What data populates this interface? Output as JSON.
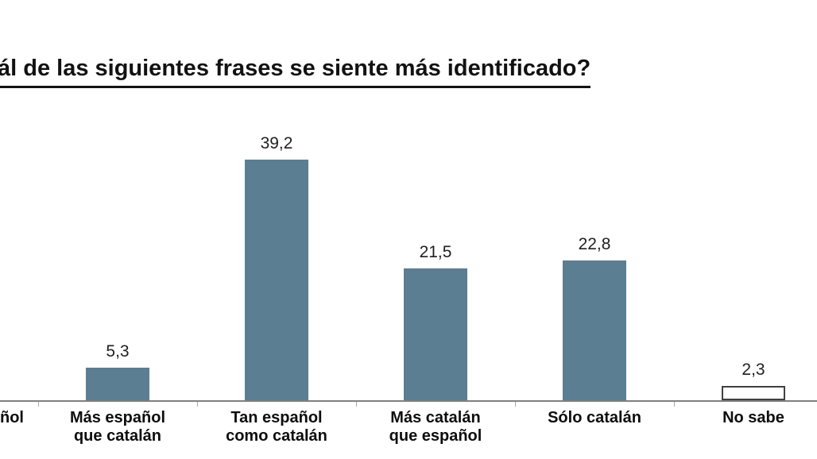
{
  "title": {
    "visible_text": "ál de las siguientes frases se siente más identificado?",
    "underlined": true
  },
  "chart_data": {
    "type": "bar",
    "title": "ál de las siguientes frases se siente más identificado?",
    "categories": [
      "ñol",
      "Más español que catalán",
      "Tan español como catalán",
      "Más catalán que español",
      "Sólo catalán",
      "No sabe"
    ],
    "category_label_lines": [
      [
        "ñol"
      ],
      [
        "Más español",
        "que catalán"
      ],
      [
        "Tan español",
        "como catalán"
      ],
      [
        "Más catalán",
        "que español"
      ],
      [
        "Sólo catalán"
      ],
      [
        "No sabe"
      ]
    ],
    "first_category_cutoff": true,
    "values": [
      null,
      5.3,
      39.2,
      21.5,
      22.8,
      2.3
    ],
    "value_labels": [
      null,
      "5,3",
      "39,2",
      "21,5",
      "22,8",
      "2,3"
    ],
    "bar_styles": [
      "solid",
      "solid",
      "solid",
      "solid",
      "solid",
      "outline"
    ],
    "xlabel": "",
    "ylabel": "",
    "ylim": [
      0,
      42
    ],
    "grid": false,
    "legend": false,
    "colors": {
      "bar_fill": "#5b7e93",
      "outline_bar_fill": "#ffffff",
      "outline_bar_border": "#404040",
      "axis_line": "#7f7f7f",
      "tick": "#a6a6a6",
      "title_text": "#121212",
      "value_text": "#1f1f1f",
      "category_text": "#0d0d0d"
    }
  }
}
